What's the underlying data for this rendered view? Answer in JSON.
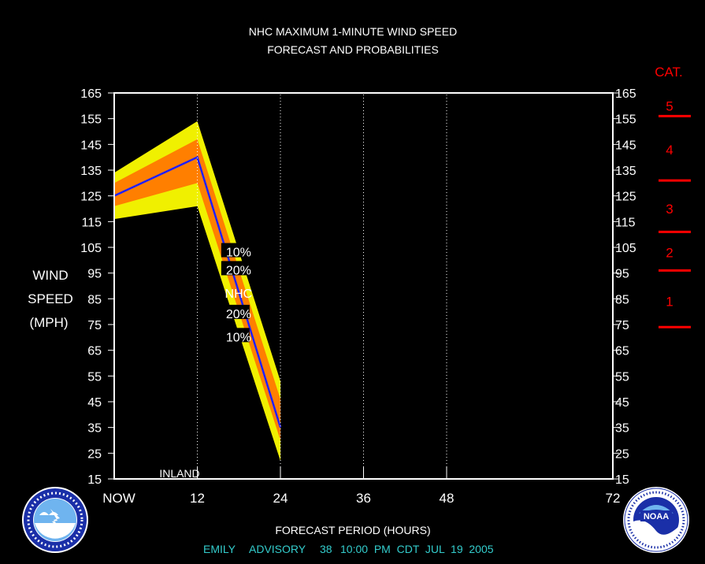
{
  "title": {
    "line1": "NHC MAXIMUM 1-MINUTE WIND SPEED",
    "line2": "FORECAST AND PROBABILITIES"
  },
  "footer": {
    "storm": "EMILY",
    "advisory_label": "ADVISORY",
    "advisory_number": "38",
    "issued": "10:00  PM  CDT  JUL  19  2005"
  },
  "colors": {
    "background": "#000000",
    "plot_border": "#ffffff",
    "ten_percent": "#f0f000",
    "twenty_percent": "#ff7f00",
    "forecast_line": "#2020ff",
    "category": "#ff0000",
    "footer_text": "#33cccc"
  },
  "chart_data": {
    "type": "area",
    "title": "NHC MAXIMUM 1-MINUTE WIND SPEED FORECAST AND PROBABILITIES",
    "xlabel": "FORECAST PERIOD (HOURS)",
    "ylabel": [
      "WIND",
      "SPEED",
      "(MPH)"
    ],
    "xlim": [
      0,
      72
    ],
    "ylim": [
      15,
      165
    ],
    "x_ticks": [
      0,
      12,
      24,
      36,
      48,
      72
    ],
    "x_tick_labels": [
      "NOW",
      "12",
      "24",
      "36",
      "48",
      "72"
    ],
    "y_ticks": [
      15,
      25,
      35,
      45,
      55,
      65,
      75,
      85,
      95,
      105,
      115,
      125,
      135,
      145,
      155,
      165
    ],
    "x": [
      0,
      12,
      24
    ],
    "series": [
      {
        "name": "10%",
        "band": "upper",
        "values": [
          134,
          154,
          53
        ]
      },
      {
        "name": "20%",
        "band": "upper",
        "values": [
          130,
          147,
          46
        ]
      },
      {
        "name": "NHC",
        "values": [
          125,
          140,
          35
        ]
      },
      {
        "name": "20%",
        "band": "lower",
        "values": [
          121,
          130,
          30
        ]
      },
      {
        "name": "10%",
        "band": "lower",
        "values": [
          116,
          121,
          22
        ]
      }
    ],
    "labels_in_plot": [
      {
        "text": "10%",
        "x": 17.5,
        "y": 103
      },
      {
        "text": "20%",
        "x": 17.5,
        "y": 96
      },
      {
        "text": "NHC",
        "x": 17.5,
        "y": 87
      },
      {
        "text": "20%",
        "x": 17.5,
        "y": 79
      },
      {
        "text": "10%",
        "x": 17.5,
        "y": 70
      }
    ],
    "annotation": {
      "text": "INLAND",
      "x": 0,
      "y": 17
    },
    "categories_scale": {
      "heading": "CAT.",
      "thresholds": [
        74,
        96,
        111,
        131,
        156
      ],
      "labels": [
        {
          "text": "1",
          "y": 84
        },
        {
          "text": "2",
          "y": 103
        },
        {
          "text": "3",
          "y": 120
        },
        {
          "text": "4",
          "y": 143
        },
        {
          "text": "5",
          "y": 160
        }
      ]
    }
  }
}
